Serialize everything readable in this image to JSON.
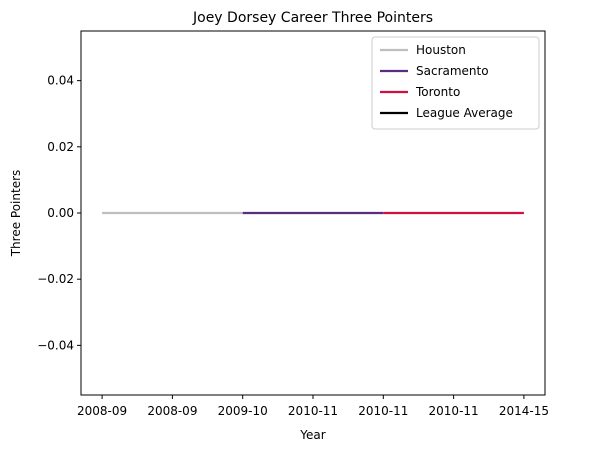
{
  "chart_data": {
    "type": "line",
    "title": "Joey Dorsey Career Three Pointers",
    "xlabel": "Year",
    "ylabel": "Three Pointers",
    "x_tick_labels": [
      "2008-09",
      "2008-09",
      "2009-10",
      "2010-11",
      "2010-11",
      "2010-11",
      "2014-15"
    ],
    "y_ticks": [
      -0.04,
      -0.02,
      0.0,
      0.02,
      0.04
    ],
    "y_tick_labels": [
      "−0.04",
      "−0.02",
      "0.00",
      "0.02",
      "0.04"
    ],
    "ylim": [
      -0.055,
      0.055
    ],
    "xlim": [
      -0.3,
      6.3
    ],
    "grid": false,
    "legend_position": "top-right",
    "series": [
      {
        "name": "Houston",
        "color": "#BEBEBE",
        "x": [
          0,
          1,
          2
        ],
        "y": [
          0,
          0,
          0
        ]
      },
      {
        "name": "Sacramento",
        "color": "#5A2D81",
        "x": [
          2,
          3,
          4
        ],
        "y": [
          0,
          0,
          0
        ]
      },
      {
        "name": "Toronto",
        "color": "#CE1141",
        "x": [
          4,
          5,
          6
        ],
        "y": [
          0,
          0,
          0
        ]
      },
      {
        "name": "League Average",
        "color": "#000000",
        "x": [],
        "y": []
      }
    ]
  }
}
